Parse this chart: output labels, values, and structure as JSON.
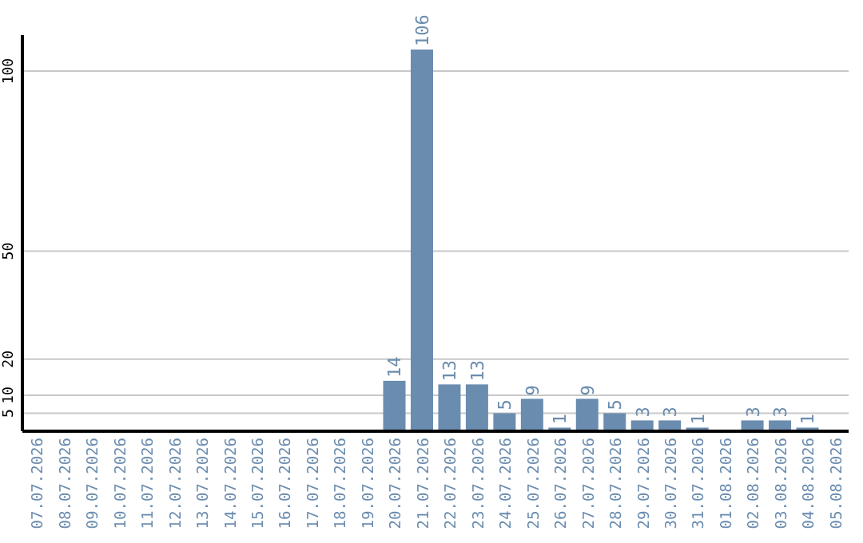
{
  "chart_data": {
    "type": "bar",
    "categories": [
      "07.07.2026",
      "08.07.2026",
      "09.07.2026",
      "10.07.2026",
      "11.07.2026",
      "12.07.2026",
      "13.07.2026",
      "14.07.2026",
      "15.07.2026",
      "16.07.2026",
      "17.07.2026",
      "18.07.2026",
      "19.07.2026",
      "20.07.2026",
      "21.07.2026",
      "22.07.2026",
      "23.07.2026",
      "24.07.2026",
      "25.07.2026",
      "26.07.2026",
      "27.07.2026",
      "28.07.2026",
      "29.07.2026",
      "30.07.2026",
      "31.07.2026",
      "01.08.2026",
      "02.08.2026",
      "03.08.2026",
      "04.08.2026",
      "05.08.2026"
    ],
    "values": [
      0,
      0,
      0,
      0,
      0,
      0,
      0,
      0,
      0,
      0,
      0,
      0,
      0,
      14,
      106,
      13,
      13,
      5,
      9,
      1,
      9,
      5,
      3,
      3,
      1,
      0,
      3,
      3,
      1,
      0
    ],
    "value_labels": [
      null,
      null,
      null,
      null,
      null,
      null,
      null,
      null,
      null,
      null,
      null,
      null,
      null,
      "14",
      "106",
      "13",
      "13",
      "5",
      "9",
      "1",
      "9",
      "5",
      "3",
      "3",
      "1",
      null,
      "3",
      "3",
      "1",
      null
    ],
    "color": "#6a8caf",
    "ylim": [
      0,
      110
    ],
    "yticks": [
      5,
      10,
      20,
      50,
      100
    ],
    "grid": "y"
  }
}
